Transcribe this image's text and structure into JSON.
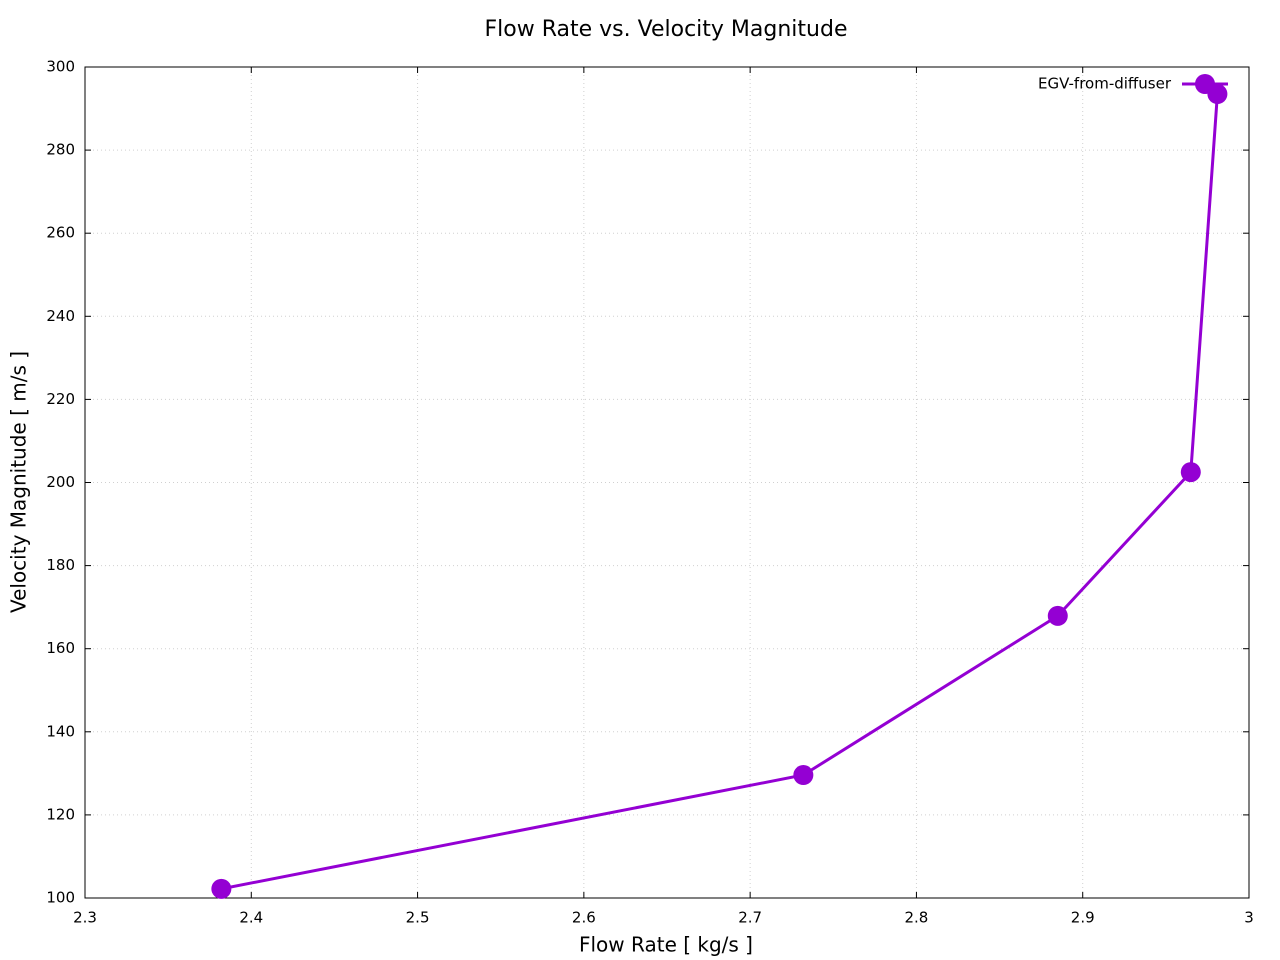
{
  "chart_data": {
    "type": "line",
    "title": "Flow Rate vs. Velocity Magnitude",
    "x_label": "Flow Rate [ kg/s ]",
    "y_label": "Velocity Magnitude [ m/s ]",
    "series": [
      {
        "name": "EGV-from-diffuser",
        "color": "#9400d3",
        "x": [
          2.382,
          2.732,
          2.885,
          2.965,
          2.981
        ],
        "values": [
          102.2,
          129.6,
          167.9,
          202.5,
          293.5
        ]
      }
    ],
    "xlim": [
      2.3,
      3
    ],
    "xticks": [
      2.3,
      2.4,
      2.5,
      2.6,
      2.7,
      2.8,
      2.9,
      3
    ],
    "ylim": [
      100,
      300
    ],
    "yticks": [
      100,
      120,
      140,
      160,
      180,
      200,
      220,
      240,
      260,
      280,
      300
    ],
    "grid": true,
    "legend": "top-right"
  }
}
